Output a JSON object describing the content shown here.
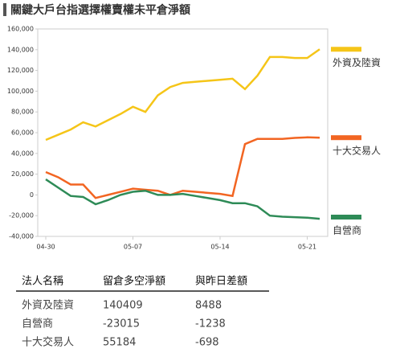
{
  "chart_data": {
    "type": "line",
    "title": "關鍵大戶台指選擇權賣權未平倉淨額",
    "categories": [
      "04-30",
      null,
      null,
      null,
      null,
      null,
      null,
      "05-07",
      null,
      null,
      null,
      null,
      null,
      null,
      "05-14",
      null,
      null,
      null,
      null,
      null,
      null,
      "05-21",
      null
    ],
    "series": [
      {
        "name": "外資及陸資",
        "color": "#f5c518",
        "values": [
          53000,
          58000,
          63000,
          70000,
          66000,
          72000,
          78000,
          85000,
          80000,
          96000,
          104000,
          108000,
          109000,
          110000,
          111000,
          112000,
          102000,
          115000,
          133000,
          133000,
          132000,
          132000,
          140409
        ]
      },
      {
        "name": "十大交易人",
        "color": "#f26522",
        "values": [
          22000,
          17000,
          10000,
          10000,
          -3000,
          0,
          3000,
          6000,
          5000,
          4000,
          0,
          4000,
          3000,
          2000,
          1000,
          -1000,
          49000,
          54000,
          54000,
          54000,
          55000,
          55500,
          55184
        ]
      },
      {
        "name": "自營商",
        "color": "#2e8b57",
        "values": [
          15000,
          7000,
          -1000,
          -2000,
          -9000,
          -5000,
          0,
          3000,
          4000,
          0,
          0,
          1000,
          -1000,
          -3000,
          -5000,
          -8000,
          -8000,
          -11000,
          -20000,
          -21000,
          -21500,
          -22000,
          -23015
        ]
      }
    ],
    "ylim": [
      -40000,
      160000
    ],
    "yticks": [
      {
        "value": -40000,
        "label": "-40,000"
      },
      {
        "value": -20000,
        "label": "-20,000"
      },
      0,
      {
        "value": 20000,
        "label": "20,000"
      },
      {
        "value": 40000,
        "label": "40,000"
      },
      {
        "value": 60000,
        "label": "60,000"
      },
      {
        "value": 80000,
        "label": "80,000"
      },
      {
        "value": 100000,
        "label": "100,000"
      },
      {
        "value": 120000,
        "label": "120,000"
      },
      {
        "value": 140000,
        "label": "140,000"
      },
      {
        "value": 160000,
        "label": "160,000"
      }
    ],
    "grid": false,
    "legend": "right"
  },
  "table": {
    "header": [
      "法人名稱",
      "留倉多空淨額",
      "與昨日差額"
    ],
    "rows": [
      [
        "外資及陸資",
        140409,
        8488
      ],
      [
        "自營商",
        -23015,
        -1238
      ],
      [
        "十大交易人",
        55184,
        -698
      ]
    ]
  }
}
